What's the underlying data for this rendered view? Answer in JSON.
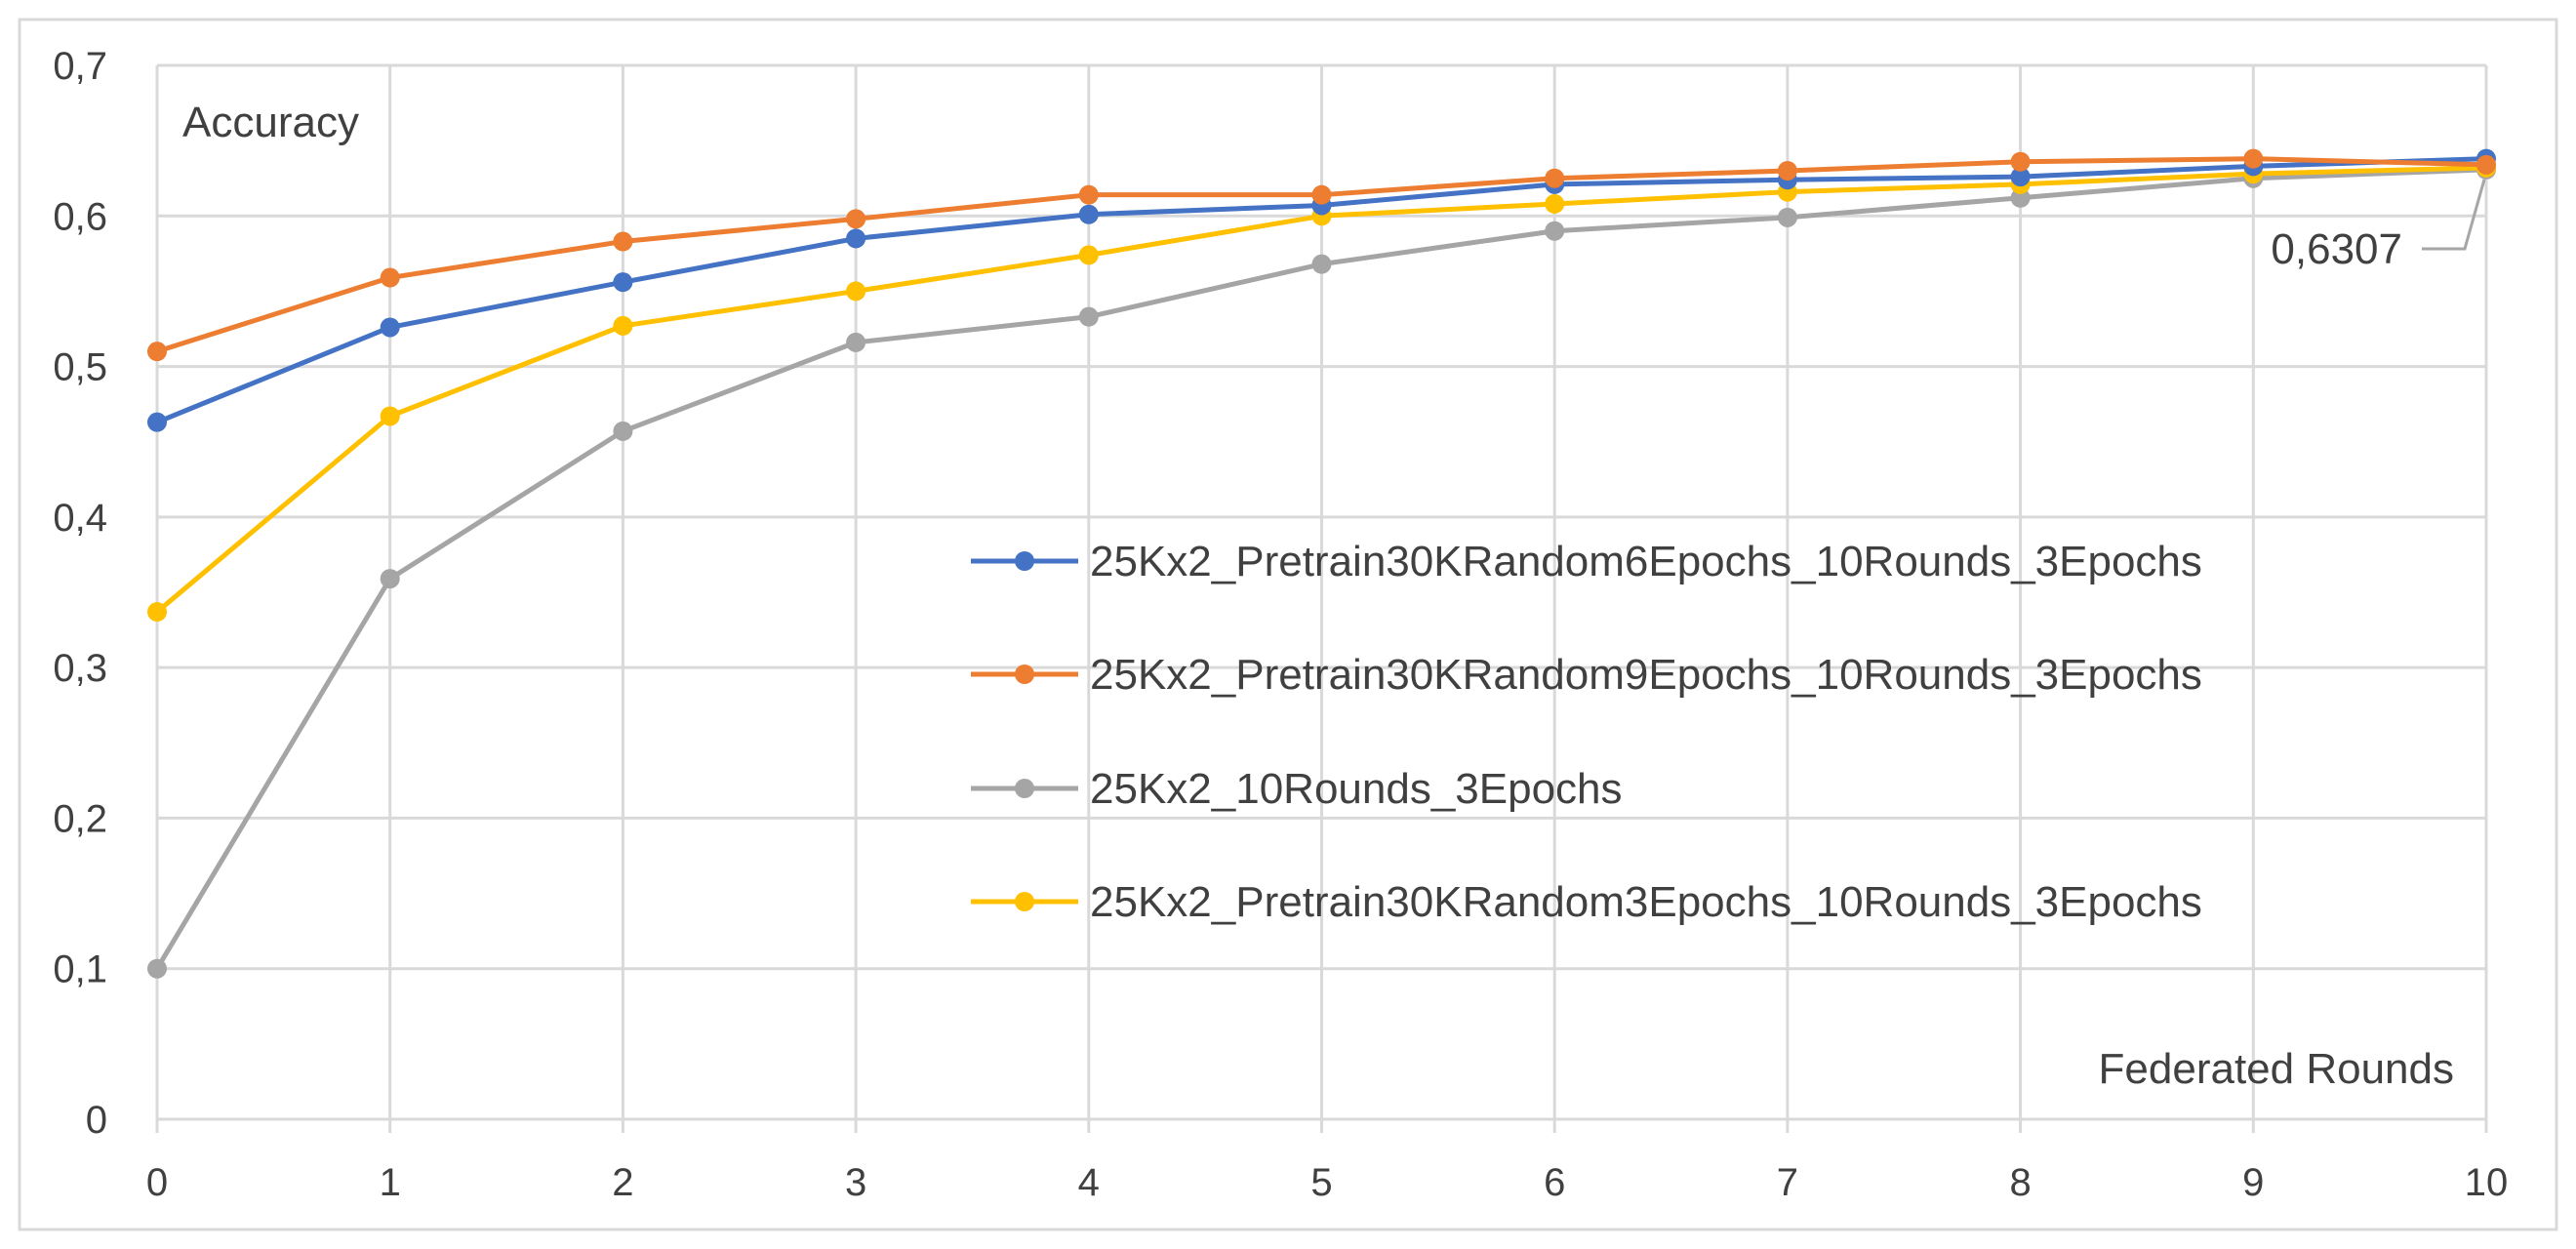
{
  "chart_data": {
    "type": "line",
    "title": "",
    "ylabel": "Accuracy",
    "xlabel": "Federated Rounds",
    "x": [
      0,
      1,
      2,
      3,
      4,
      5,
      6,
      7,
      8,
      9,
      10
    ],
    "ylim": [
      0,
      0.7
    ],
    "yticks": [
      {
        "value": 0,
        "label": "0"
      },
      {
        "value": 0.1,
        "label": "0,1"
      },
      {
        "value": 0.2,
        "label": "0,2"
      },
      {
        "value": 0.3,
        "label": "0,3"
      },
      {
        "value": 0.4,
        "label": "0,4"
      },
      {
        "value": 0.5,
        "label": "0,5"
      },
      {
        "value": 0.6,
        "label": "0,6"
      },
      {
        "value": 0.7,
        "label": "0,7"
      }
    ],
    "grid": true,
    "legend_position": "center-right",
    "series": [
      {
        "name": "25Kx2_Pretrain30KRandom6Epochs_10Rounds_3Epochs",
        "color": "#4472C4",
        "values": [
          0.463,
          0.526,
          0.556,
          0.585,
          0.601,
          0.607,
          0.621,
          0.624,
          0.626,
          0.633,
          0.638
        ]
      },
      {
        "name": "25Kx2_Pretrain30KRandom9Epochs_10Rounds_3Epochs",
        "color": "#ED7D31",
        "values": [
          0.51,
          0.559,
          0.583,
          0.598,
          0.614,
          0.614,
          0.625,
          0.63,
          0.636,
          0.638,
          0.634
        ]
      },
      {
        "name": "25Kx2_10Rounds_3Epochs",
        "color": "#A5A5A5",
        "values": [
          0.1,
          0.359,
          0.457,
          0.516,
          0.533,
          0.568,
          0.59,
          0.599,
          0.612,
          0.625,
          0.6307
        ]
      },
      {
        "name": "25Kx2_Pretrain30KRandom3Epochs_10Rounds_3Epochs",
        "color": "#FFC000",
        "values": [
          0.337,
          0.467,
          0.527,
          0.55,
          0.574,
          0.6,
          0.608,
          0.616,
          0.621,
          0.628,
          0.632
        ]
      }
    ],
    "annotations": [
      {
        "text": "0,6307",
        "series_index": 2,
        "point_index": 10
      }
    ]
  }
}
